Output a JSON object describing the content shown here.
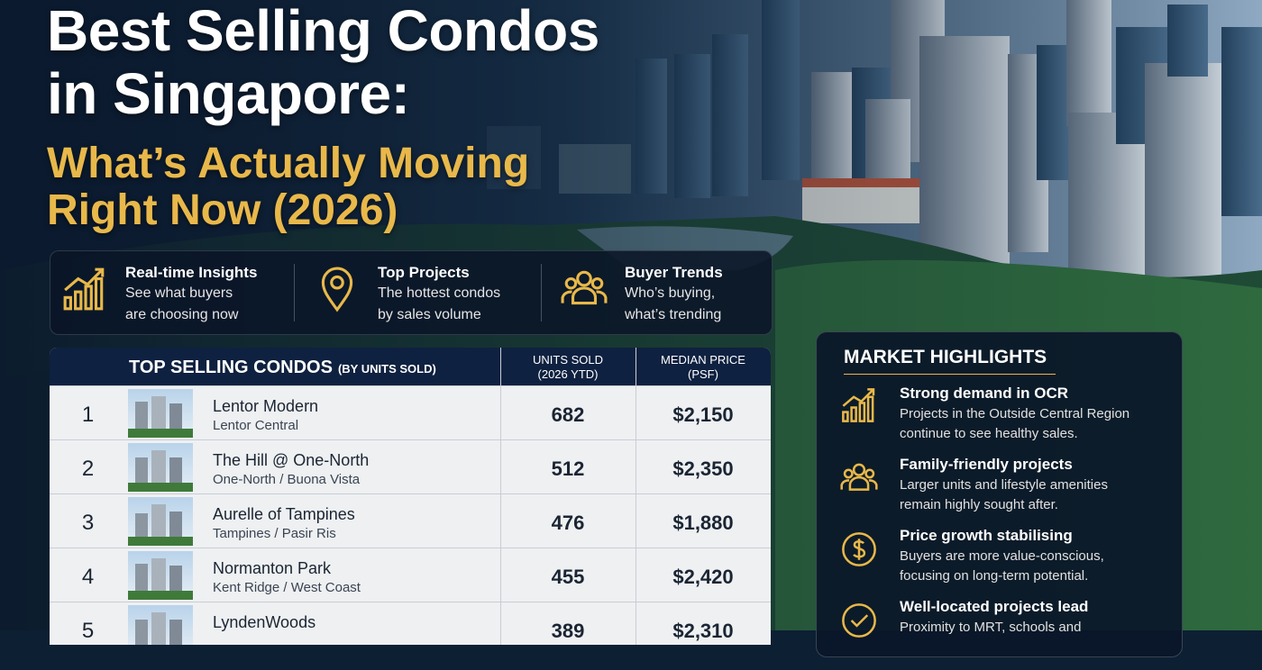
{
  "header": {
    "title": [
      "Best Selling Condos",
      "in Singapore:"
    ],
    "subtitle": [
      "What’s Actually Moving",
      "Right Now (2026)"
    ]
  },
  "features": [
    {
      "title": "Real-time Insights",
      "text": [
        "See what buyers",
        "are choosing now"
      ]
    },
    {
      "title": "Top Projects",
      "text": [
        "The hottest condos",
        "by sales volume"
      ]
    },
    {
      "title": "Buyer Trends",
      "text": [
        "Who’s buying,",
        "what’s trending"
      ]
    }
  ],
  "table": {
    "title": "TOP SELLING CONDOS",
    "title_note": "(BY UNITS SOLD)",
    "columns": [
      [
        "UNITS SOLD",
        "(2026 YTD)"
      ],
      [
        "MEDIAN PRICE",
        "(PSF)"
      ]
    ],
    "rows": [
      {
        "rank": "1",
        "name": "Lentor Modern",
        "location": "Lentor Central",
        "units": "682",
        "price": "$2,150"
      },
      {
        "rank": "2",
        "name": "The Hill @ One-North",
        "location": "One-North / Buona Vista",
        "units": "512",
        "price": "$2,350"
      },
      {
        "rank": "3",
        "name": "Aurelle of Tampines",
        "location": "Tampines / Pasir Ris",
        "units": "476",
        "price": "$1,880"
      },
      {
        "rank": "4",
        "name": "Normanton Park",
        "location": "Kent Ridge / West Coast",
        "units": "455",
        "price": "$2,420"
      },
      {
        "rank": "5",
        "name": "LyndenWoods",
        "units": "389",
        "price": "$2,310"
      }
    ]
  },
  "highlights": {
    "title": "MARKET HIGHLIGHTS",
    "items": [
      {
        "title": "Strong demand in OCR",
        "text": [
          "Projects in the Outside Central Region",
          "continue to see healthy sales."
        ]
      },
      {
        "title": "Family-friendly projects",
        "text": [
          "Larger units and lifestyle amenities",
          "remain highly sought after."
        ]
      },
      {
        "title": "Price growth stabilising",
        "text": [
          "Buyers are more value-conscious,",
          "focusing on long-term potential."
        ]
      },
      {
        "title": "Well-located projects lead",
        "text": [
          "Proximity to MRT, schools and"
        ]
      }
    ]
  }
}
